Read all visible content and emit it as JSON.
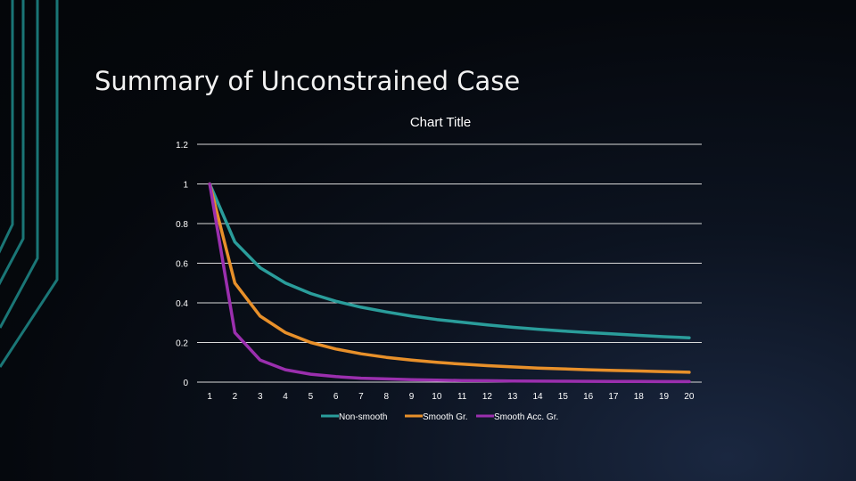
{
  "slide": {
    "title": "Summary of Unconstrained Case"
  },
  "colors": {
    "background": "#05080d",
    "decor_line": "#1f8a8a",
    "gridline": "#d9d9d9",
    "text": "#ffffff"
  },
  "chart_data": {
    "type": "line",
    "title": "Chart Title",
    "xlabel": "",
    "ylabel": "",
    "x": [
      1,
      2,
      3,
      4,
      5,
      6,
      7,
      8,
      9,
      10,
      11,
      12,
      13,
      14,
      15,
      16,
      17,
      18,
      19,
      20
    ],
    "y_ticks": [
      "0",
      "0.2",
      "0.4",
      "0.6",
      "0.8",
      "1",
      "1.2"
    ],
    "y_tick_values": [
      0,
      0.2,
      0.4,
      0.6,
      0.8,
      1,
      1.2
    ],
    "ylim": [
      0,
      1.2
    ],
    "grid": true,
    "legend_position": "bottom",
    "series": [
      {
        "name": "Non-smooth",
        "color": "#2a9d9b",
        "values": [
          1.0,
          0.707,
          0.577,
          0.5,
          0.447,
          0.408,
          0.378,
          0.354,
          0.333,
          0.316,
          0.302,
          0.289,
          0.277,
          0.267,
          0.258,
          0.25,
          0.243,
          0.236,
          0.229,
          0.224
        ]
      },
      {
        "name": "Smooth Gr.",
        "color": "#e8902a",
        "values": [
          1.0,
          0.5,
          0.333,
          0.25,
          0.2,
          0.167,
          0.143,
          0.125,
          0.111,
          0.1,
          0.091,
          0.083,
          0.077,
          0.071,
          0.067,
          0.0625,
          0.059,
          0.056,
          0.053,
          0.05
        ]
      },
      {
        "name": "Smooth Acc. Gr.",
        "color": "#9b2fae",
        "values": [
          1.0,
          0.25,
          0.111,
          0.0625,
          0.04,
          0.028,
          0.02,
          0.016,
          0.012,
          0.01,
          0.008,
          0.007,
          0.006,
          0.005,
          0.0044,
          0.0039,
          0.0035,
          0.0031,
          0.0028,
          0.0025
        ]
      }
    ]
  }
}
